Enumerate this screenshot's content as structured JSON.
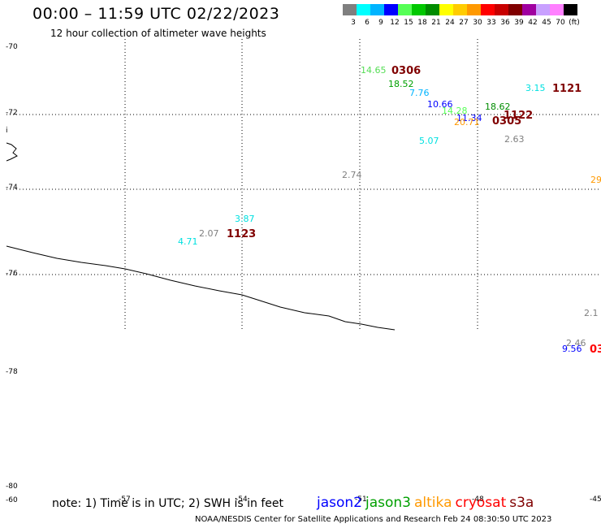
{
  "header": {
    "title": "00:00 – 11:59 UTC 02/22/2023",
    "subtitle": "12 hour collection of altimeter wave heights"
  },
  "legend": {
    "swatches": [
      {
        "color": "#7f7f7f",
        "label": "3"
      },
      {
        "color": "#00ffff",
        "label": "6"
      },
      {
        "color": "#00b4ff",
        "label": "9"
      },
      {
        "color": "#0000ff",
        "label": "12"
      },
      {
        "color": "#55ff55",
        "label": "15"
      },
      {
        "color": "#00c800",
        "label": "18"
      },
      {
        "color": "#008c00",
        "label": "21"
      },
      {
        "color": "#ffff00",
        "label": "24"
      },
      {
        "color": "#ffcc00",
        "label": "27"
      },
      {
        "color": "#ff9900",
        "label": "30"
      },
      {
        "color": "#ff0000",
        "label": "33"
      },
      {
        "color": "#c80000",
        "label": "36"
      },
      {
        "color": "#800000",
        "label": "39"
      },
      {
        "color": "#a000a0",
        "label": "42"
      },
      {
        "color": "#c8a0ff",
        "label": "45"
      },
      {
        "color": "#ff80ff",
        "label": "70"
      },
      {
        "color": "#000000",
        "label": ""
      }
    ],
    "unit": "(ft)"
  },
  "map": {
    "lat_labels": [
      {
        "text": "-70"
      },
      {
        "text": "-72"
      },
      {
        "text": "-74"
      },
      {
        "text": "-76"
      },
      {
        "text": "-78"
      },
      {
        "text": "-80"
      },
      {
        "text": "-60"
      }
    ],
    "lon_labels": [
      {
        "text": "-57"
      },
      {
        "text": "-54"
      },
      {
        "text": "-51"
      },
      {
        "text": "-48"
      },
      {
        "text": "-45"
      }
    ],
    "edge_marks": [
      {
        "text": "i"
      }
    ],
    "wave_heights": [
      {
        "value": "14.65",
        "color": "#55dd55"
      },
      {
        "value": "18.52",
        "color": "#00a000"
      },
      {
        "value": "7.76",
        "color": "#00b4ff"
      },
      {
        "value": "10.66",
        "color": "#0000ff"
      },
      {
        "value": "14.28",
        "color": "#55ff55"
      },
      {
        "value": "18.62",
        "color": "#008c00"
      },
      {
        "value": "11.34",
        "color": "#0000ff"
      },
      {
        "value": "20.71",
        "color": "#ff9900"
      },
      {
        "value": "3.15",
        "color": "#00e0e0"
      },
      {
        "value": "5.07",
        "color": "#00e0e0"
      },
      {
        "value": "2.63",
        "color": "#7f7f7f"
      },
      {
        "value": "2.74",
        "color": "#7f7f7f"
      },
      {
        "value": "29",
        "color": "#ff9900"
      },
      {
        "value": "3.87",
        "color": "#00e0e0"
      },
      {
        "value": "2.07",
        "color": "#7f7f7f"
      },
      {
        "value": "4.71",
        "color": "#00e0e0"
      },
      {
        "value": "2.1",
        "color": "#7f7f7f"
      },
      {
        "value": "2.46",
        "color": "#7f7f7f"
      },
      {
        "value": "9.56",
        "color": "#0000ff"
      }
    ],
    "pass_times": [
      {
        "text": "0306",
        "color": "#800000"
      },
      {
        "text": "1121",
        "color": "#800000"
      },
      {
        "text": "1122",
        "color": "#800000"
      },
      {
        "text": "0305",
        "color": "#800000"
      },
      {
        "text": "1123",
        "color": "#800000"
      },
      {
        "text": "03",
        "color": "#ff0000"
      }
    ]
  },
  "footer": {
    "note": "note: 1) Time is in UTC; 2) SWH is in feet",
    "satellites": [
      {
        "name": "jason2",
        "color": "#0000ff"
      },
      {
        "name": "jason3",
        "color": "#00a000"
      },
      {
        "name": "altika",
        "color": "#ff9900"
      },
      {
        "name": "cryosat",
        "color": "#ff0000"
      },
      {
        "name": "s3a",
        "color": "#800000"
      }
    ],
    "credit": "NOAA/NESDIS Center for Satellite Applications and Research     Feb 24 08:30:50 UTC 2023"
  }
}
